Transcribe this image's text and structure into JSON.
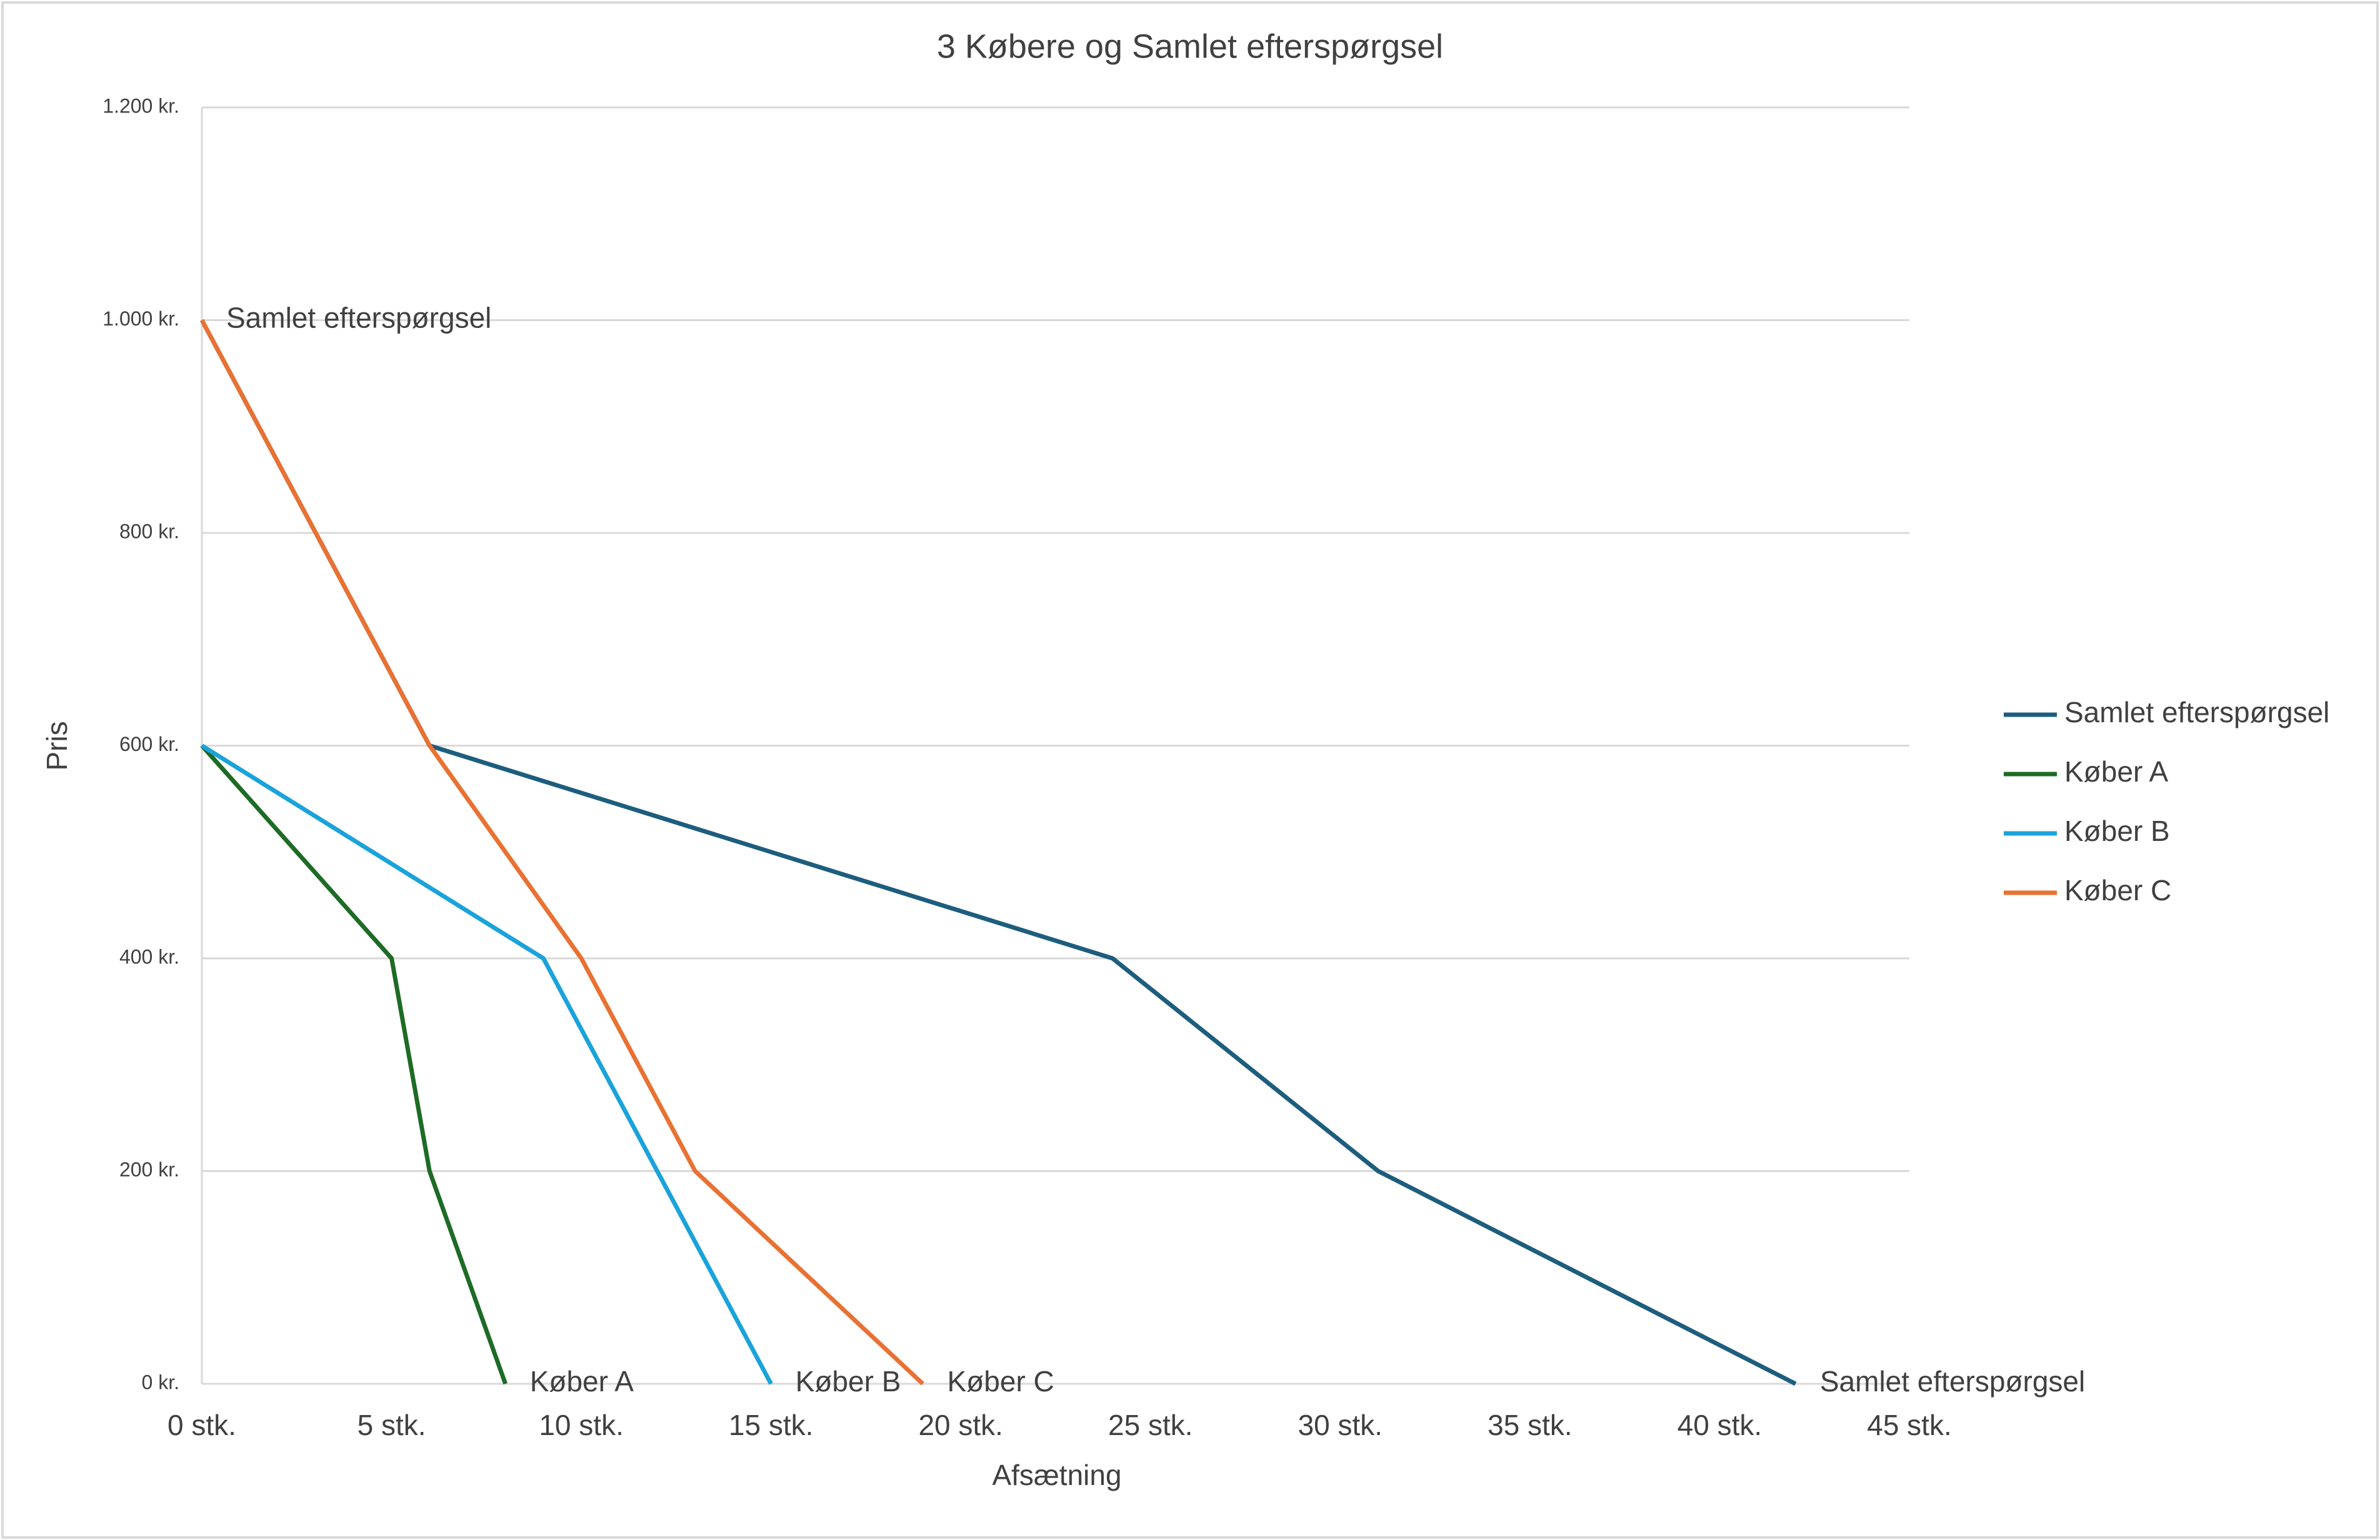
{
  "chart_data": {
    "type": "line",
    "title": "3 Købere og Samlet efterspørgsel",
    "x_label": "Afsætning",
    "y_label": "Pris",
    "xlim": [
      0,
      45
    ],
    "ylim": [
      0,
      1200
    ],
    "xticks": [
      {
        "value": 0,
        "label": "0 stk."
      },
      {
        "value": 5,
        "label": "5 stk."
      },
      {
        "value": 10,
        "label": "10 stk."
      },
      {
        "value": 15,
        "label": "15 stk."
      },
      {
        "value": 20,
        "label": "20 stk."
      },
      {
        "value": 25,
        "label": "25 stk."
      },
      {
        "value": 30,
        "label": "30 stk."
      },
      {
        "value": 35,
        "label": "35 stk."
      },
      {
        "value": 40,
        "label": "40 stk."
      },
      {
        "value": 45,
        "label": "45 stk."
      }
    ],
    "yticks": [
      {
        "value": 0,
        "label": "0 kr."
      },
      {
        "value": 200,
        "label": "200 kr."
      },
      {
        "value": 400,
        "label": "400 kr."
      },
      {
        "value": 600,
        "label": "600 kr."
      },
      {
        "value": 800,
        "label": "800 kr."
      },
      {
        "value": 1000,
        "label": "1.000 kr."
      },
      {
        "value": 1200,
        "label": "1.200 kr."
      }
    ],
    "grid": true,
    "legend": "right",
    "series": [
      {
        "name": "Samlet efterspørgsel",
        "color": "#1d5d7e",
        "x": [
          0,
          6,
          24,
          31,
          42
        ],
        "values": [
          1000,
          600,
          400,
          200,
          0
        ]
      },
      {
        "name": "Køber A",
        "color": "#1e6b26",
        "x": [
          0,
          5,
          6,
          8
        ],
        "values": [
          600,
          400,
          200,
          0
        ]
      },
      {
        "name": "Køber B",
        "color": "#1aa3db",
        "x": [
          0,
          9,
          15
        ],
        "values": [
          600,
          400,
          0
        ]
      },
      {
        "name": "Køber C",
        "color": "#e97132",
        "x": [
          0,
          6,
          10,
          13,
          19
        ],
        "values": [
          1000,
          600,
          400,
          200,
          0
        ]
      }
    ]
  }
}
